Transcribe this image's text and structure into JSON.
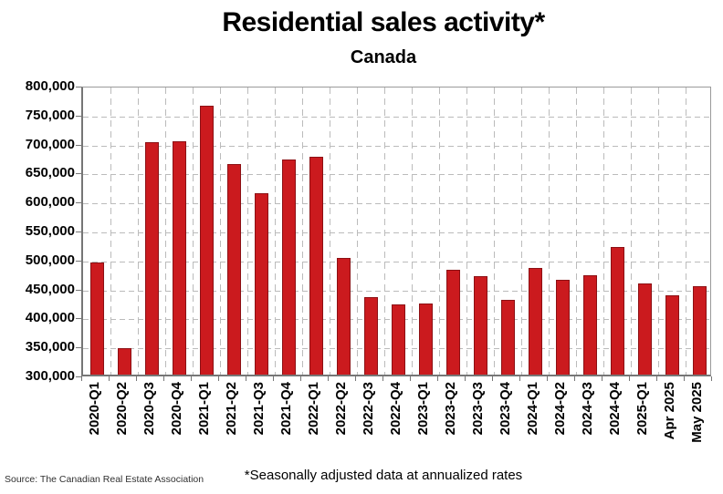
{
  "page": {
    "title": "Residential sales activity*",
    "subtitle": "Canada",
    "footnote": "*Seasonally adjusted data at annualized rates",
    "source": "Source: The Canadian Real Estate Association"
  },
  "colors": {
    "bar_fill": "#cb1a1e",
    "bar_border": "#8c1014",
    "grid": "#bbbbbb",
    "axis": "#767676",
    "text": "#000000"
  },
  "chart_data": {
    "type": "bar",
    "title": "Residential sales activity*",
    "subtitle": "Canada",
    "categories": [
      "2020-Q1",
      "2020-Q2",
      "2020-Q3",
      "2020-Q4",
      "2021-Q1",
      "2021-Q2",
      "2021-Q3",
      "2021-Q4",
      "2022-Q1",
      "2022-Q2",
      "2022-Q3",
      "2022-Q4",
      "2023-Q1",
      "2023-Q2",
      "2023-Q3",
      "2023-Q4",
      "2024-Q1",
      "2024-Q2",
      "2024-Q3",
      "2024-Q4",
      "2025-Q1",
      "Apr 2025",
      "May 2025"
    ],
    "values": [
      493000,
      346000,
      701000,
      703000,
      764000,
      663000,
      613000,
      671000,
      675000,
      502000,
      433000,
      421000,
      423000,
      481000,
      470000,
      429000,
      484000,
      464000,
      471000,
      520000,
      457000,
      437000,
      452000
    ],
    "xlabel": "",
    "ylabel": "",
    "ylim": [
      300000,
      800000
    ],
    "ytick_interval": 50000,
    "ytick_labels": [
      "800,000",
      "750,000",
      "700,000",
      "650,000",
      "600,000",
      "550,000",
      "500,000",
      "450,000",
      "400,000",
      "350,000",
      "300,000"
    ],
    "grid": "dashed horizontal and vertical",
    "legend_position": "none",
    "footnote": "*Seasonally adjusted data at annualized rates",
    "source": "Source: The Canadian Real Estate Association"
  }
}
